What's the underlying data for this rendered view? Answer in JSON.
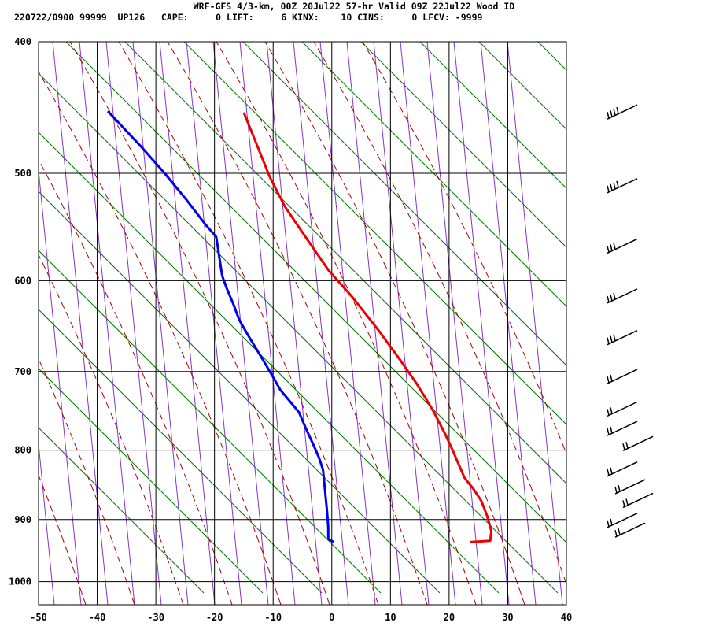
{
  "header": {
    "title": "WRF-GFS 4/3-km, 00Z 20Jul22 57-hr Valid 09Z 22Jul22 Wood ID",
    "stats": "220722/0900 99999  UP126   CAPE:     0 LIFT:     6 KINX:    10 CINS:     0 LFCV: -9999"
  },
  "chart_data": {
    "type": "line",
    "title": "WRF-GFS 4/3-km, 00Z 20Jul22 57-hr Valid 09Z 22Jul22 Wood ID",
    "xlabel": "",
    "ylabel": "",
    "x_scale": "skew",
    "y_scale": "log",
    "xlim": [
      -50,
      40
    ],
    "ylim": [
      1040,
      400
    ],
    "x_ticks": [
      -50,
      -40,
      -30,
      -20,
      -10,
      0,
      10,
      20,
      30,
      40
    ],
    "y_ticks": [
      400,
      500,
      600,
      700,
      800,
      900,
      1000
    ],
    "grid": true,
    "series": [
      {
        "color": "#ee0000",
        "points": [
          [
            23.5,
            935
          ],
          [
            27.0,
            933
          ],
          [
            27.2,
            918
          ],
          [
            26.5,
            895
          ],
          [
            25.5,
            872
          ],
          [
            24.2,
            855
          ],
          [
            22.6,
            838
          ],
          [
            21.4,
            815
          ],
          [
            20.6,
            800
          ],
          [
            19.3,
            778
          ],
          [
            17.2,
            747
          ],
          [
            14.5,
            715
          ],
          [
            11.5,
            685
          ],
          [
            8.0,
            653
          ],
          [
            3.5,
            617
          ],
          [
            -0.5,
            590
          ],
          [
            -4.0,
            561
          ],
          [
            -8.0,
            529
          ],
          [
            -10.5,
            504
          ],
          [
            -15.0,
            451
          ]
        ]
      },
      {
        "color": "#0000ee",
        "points": [
          [
            0.3,
            935
          ],
          [
            -0.6,
            930
          ],
          [
            -0.6,
            912
          ],
          [
            -0.8,
            888
          ],
          [
            -1.1,
            862
          ],
          [
            -1.5,
            827
          ],
          [
            -2.2,
            810
          ],
          [
            -3.0,
            795
          ],
          [
            -4.3,
            773
          ],
          [
            -5.6,
            750
          ],
          [
            -8.8,
            722
          ],
          [
            -9.9,
            708
          ],
          [
            -11.5,
            689
          ],
          [
            -14.3,
            658
          ],
          [
            -15.8,
            641
          ],
          [
            -16.8,
            624
          ],
          [
            -17.9,
            608
          ],
          [
            -18.7,
            595
          ],
          [
            -19.3,
            572
          ],
          [
            -19.7,
            557
          ],
          [
            -21.6,
            545
          ],
          [
            -24.8,
            523
          ],
          [
            -28.5,
            500
          ],
          [
            -32.5,
            478
          ],
          [
            -38.2,
            450
          ]
        ]
      }
    ],
    "wind_barb_levels": [
      450,
      510,
      565,
      615,
      660,
      705,
      745,
      770,
      790,
      825,
      850,
      870,
      900,
      915
    ]
  }
}
